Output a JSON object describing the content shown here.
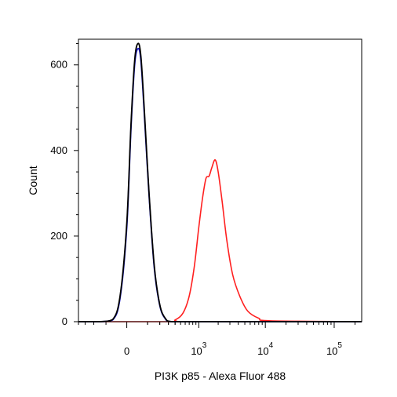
{
  "chart_data": {
    "type": "line",
    "title": "",
    "xlabel": "PI3K p85 - Alexa Fluor 488",
    "ylabel": "Count",
    "x_scale": "biexponential",
    "ylim": [
      0,
      660
    ],
    "grid": false,
    "legend": "none",
    "y_ticks": [
      {
        "value": 0,
        "label": "0"
      },
      {
        "value": 200,
        "label": "200"
      },
      {
        "value": 400,
        "label": "400"
      },
      {
        "value": 600,
        "label": "600"
      }
    ],
    "x_ticks": [
      {
        "value": 0,
        "base": "0",
        "exp": ""
      },
      {
        "value": 1000,
        "base": "10",
        "exp": "3"
      },
      {
        "value": 10000,
        "base": "10",
        "exp": "4"
      },
      {
        "value": 100000,
        "base": "10",
        "exp": "5"
      }
    ],
    "series": [
      {
        "color": "#000000",
        "x": [
          -400,
          -150,
          -60,
          -25,
          0,
          15,
          30,
          45,
          60,
          80,
          110,
          150,
          200,
          260,
          350,
          1000,
          10000,
          250000
        ],
        "y": [
          0,
          0,
          5,
          60,
          230,
          460,
          610,
          650,
          620,
          490,
          300,
          130,
          40,
          8,
          0,
          0,
          0,
          0
        ]
      },
      {
        "color": "#1f1fd0",
        "x": [
          -400,
          -150,
          -60,
          -25,
          0,
          15,
          30,
          45,
          60,
          80,
          110,
          150,
          200,
          260,
          350,
          1000,
          10000,
          250000
        ],
        "y": [
          0,
          0,
          4,
          55,
          220,
          450,
          600,
          638,
          610,
          480,
          295,
          125,
          38,
          7,
          0,
          0,
          0,
          0
        ]
      },
      {
        "color": "#ff2020",
        "x": [
          -400,
          300,
          400,
          550,
          700,
          850,
          1000,
          1150,
          1300,
          1450,
          1600,
          1800,
          2000,
          2300,
          2700,
          3300,
          4200,
          5500,
          8000,
          12000,
          250000
        ],
        "y": [
          0,
          0,
          4,
          20,
          60,
          130,
          220,
          290,
          335,
          340,
          360,
          378,
          350,
          280,
          190,
          110,
          60,
          25,
          8,
          2,
          0
        ]
      }
    ]
  }
}
